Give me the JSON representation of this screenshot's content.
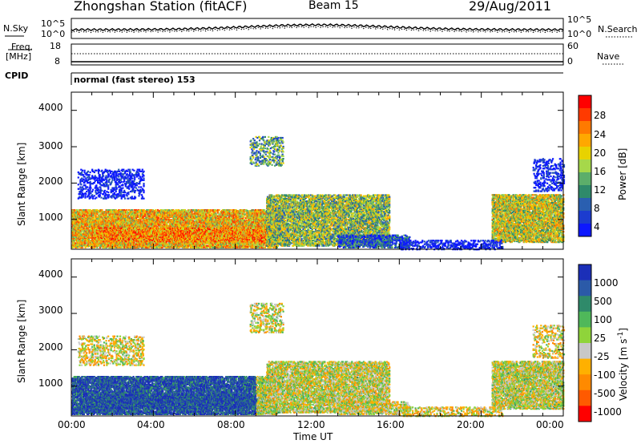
{
  "header": {
    "station_title": "Zhongshan Station (fitACF)",
    "beam": "Beam 15",
    "date": "29/Aug/2011"
  },
  "strip": {
    "nsky_label": "N.Sky",
    "nsky_ticks": [
      "10^5",
      "10^0"
    ],
    "nsearch_label": "N.Search",
    "nsearch_ticks": [
      "10^5",
      "10^0"
    ],
    "freq_label_1": "Freq.",
    "freq_label_2": "[MHz]",
    "freq_ticks": [
      "18",
      "8"
    ],
    "nave_label": "Nave",
    "nave_ticks": [
      "60",
      "0"
    ],
    "cpid_label": "CPID",
    "cpid_text": "normal (fast stereo) 153"
  },
  "power_panel": {
    "ylabel": "Slant Range [km]",
    "yticks": [
      "4000",
      "3000",
      "2000",
      "1000"
    ],
    "colorbar_title": "Power [dB]",
    "colorbar_ticks": [
      "28",
      "24",
      "20",
      "16",
      "12",
      "8",
      "4"
    ],
    "colorbar_colors": [
      "#ff0000",
      "#ff3a00",
      "#ff7a00",
      "#ffa800",
      "#e8d200",
      "#a6d84a",
      "#5cae6a",
      "#2f8a6a",
      "#2a5fb0",
      "#1c3ccf",
      "#0d18ff"
    ]
  },
  "velocity_panel": {
    "ylabel": "Slant Range [km]",
    "yticks": [
      "4000",
      "3000",
      "2000",
      "1000"
    ],
    "colorbar_title": "Velocity [m s",
    "colorbar_title_sup": "-1",
    "colorbar_title_end": "]",
    "colorbar_ticks": [
      "1000",
      "500",
      "100",
      "25",
      "-25",
      "-100",
      "-500",
      "-1000"
    ],
    "colorbar_colors": [
      "#1b2fb8",
      "#2b5aa8",
      "#2f8a6a",
      "#4fb85a",
      "#8fd43a",
      "#c8c8c8",
      "#ffb000",
      "#ff8a00",
      "#ff5a00",
      "#ff0000"
    ]
  },
  "x_axis": {
    "ticks": [
      "00:00",
      "04:00",
      "08:00",
      "12:00",
      "16:00",
      "20:00",
      "00:00"
    ],
    "label": "Time UT"
  },
  "chart_data": {
    "type": "heatmap",
    "x_range_hours": [
      0,
      24
    ],
    "y_range_km": [
      180,
      4500
    ],
    "power_levels_db": [
      4,
      8,
      12,
      16,
      20,
      24,
      28
    ],
    "velocity_levels_ms": [
      -1000,
      -500,
      -100,
      -25,
      25,
      100,
      500,
      1000
    ]
  }
}
